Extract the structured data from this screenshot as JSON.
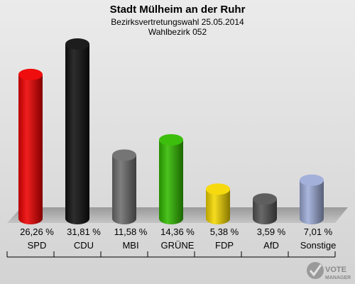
{
  "chart_data": {
    "type": "bar",
    "title": "Stadt Mülheim an der Ruhr",
    "subtitle": "Bezirksvertretungswahl 25.05.2014",
    "subtitle2": "Wahlbezirk 052",
    "categories": [
      "SPD",
      "CDU",
      "MBI",
      "GRÜNE",
      "FDP",
      "AfD",
      "Sonstige"
    ],
    "values": [
      26.26,
      31.81,
      11.58,
      14.36,
      5.38,
      3.59,
      7.01
    ],
    "value_labels": [
      "26,26 %",
      "31,81 %",
      "11,58 %",
      "14,36 %",
      "5,38 %",
      "3,59 %",
      "7,01 %"
    ],
    "colors": [
      "#ee0000",
      "#111111",
      "#6e6e6e",
      "#33bb00",
      "#f5d800",
      "#555555",
      "#9eacd8"
    ],
    "ylim": [
      0,
      31.81
    ],
    "grid": false,
    "legend": "none"
  },
  "logo": {
    "line1": "VOTE",
    "line2": "MANAGER"
  }
}
